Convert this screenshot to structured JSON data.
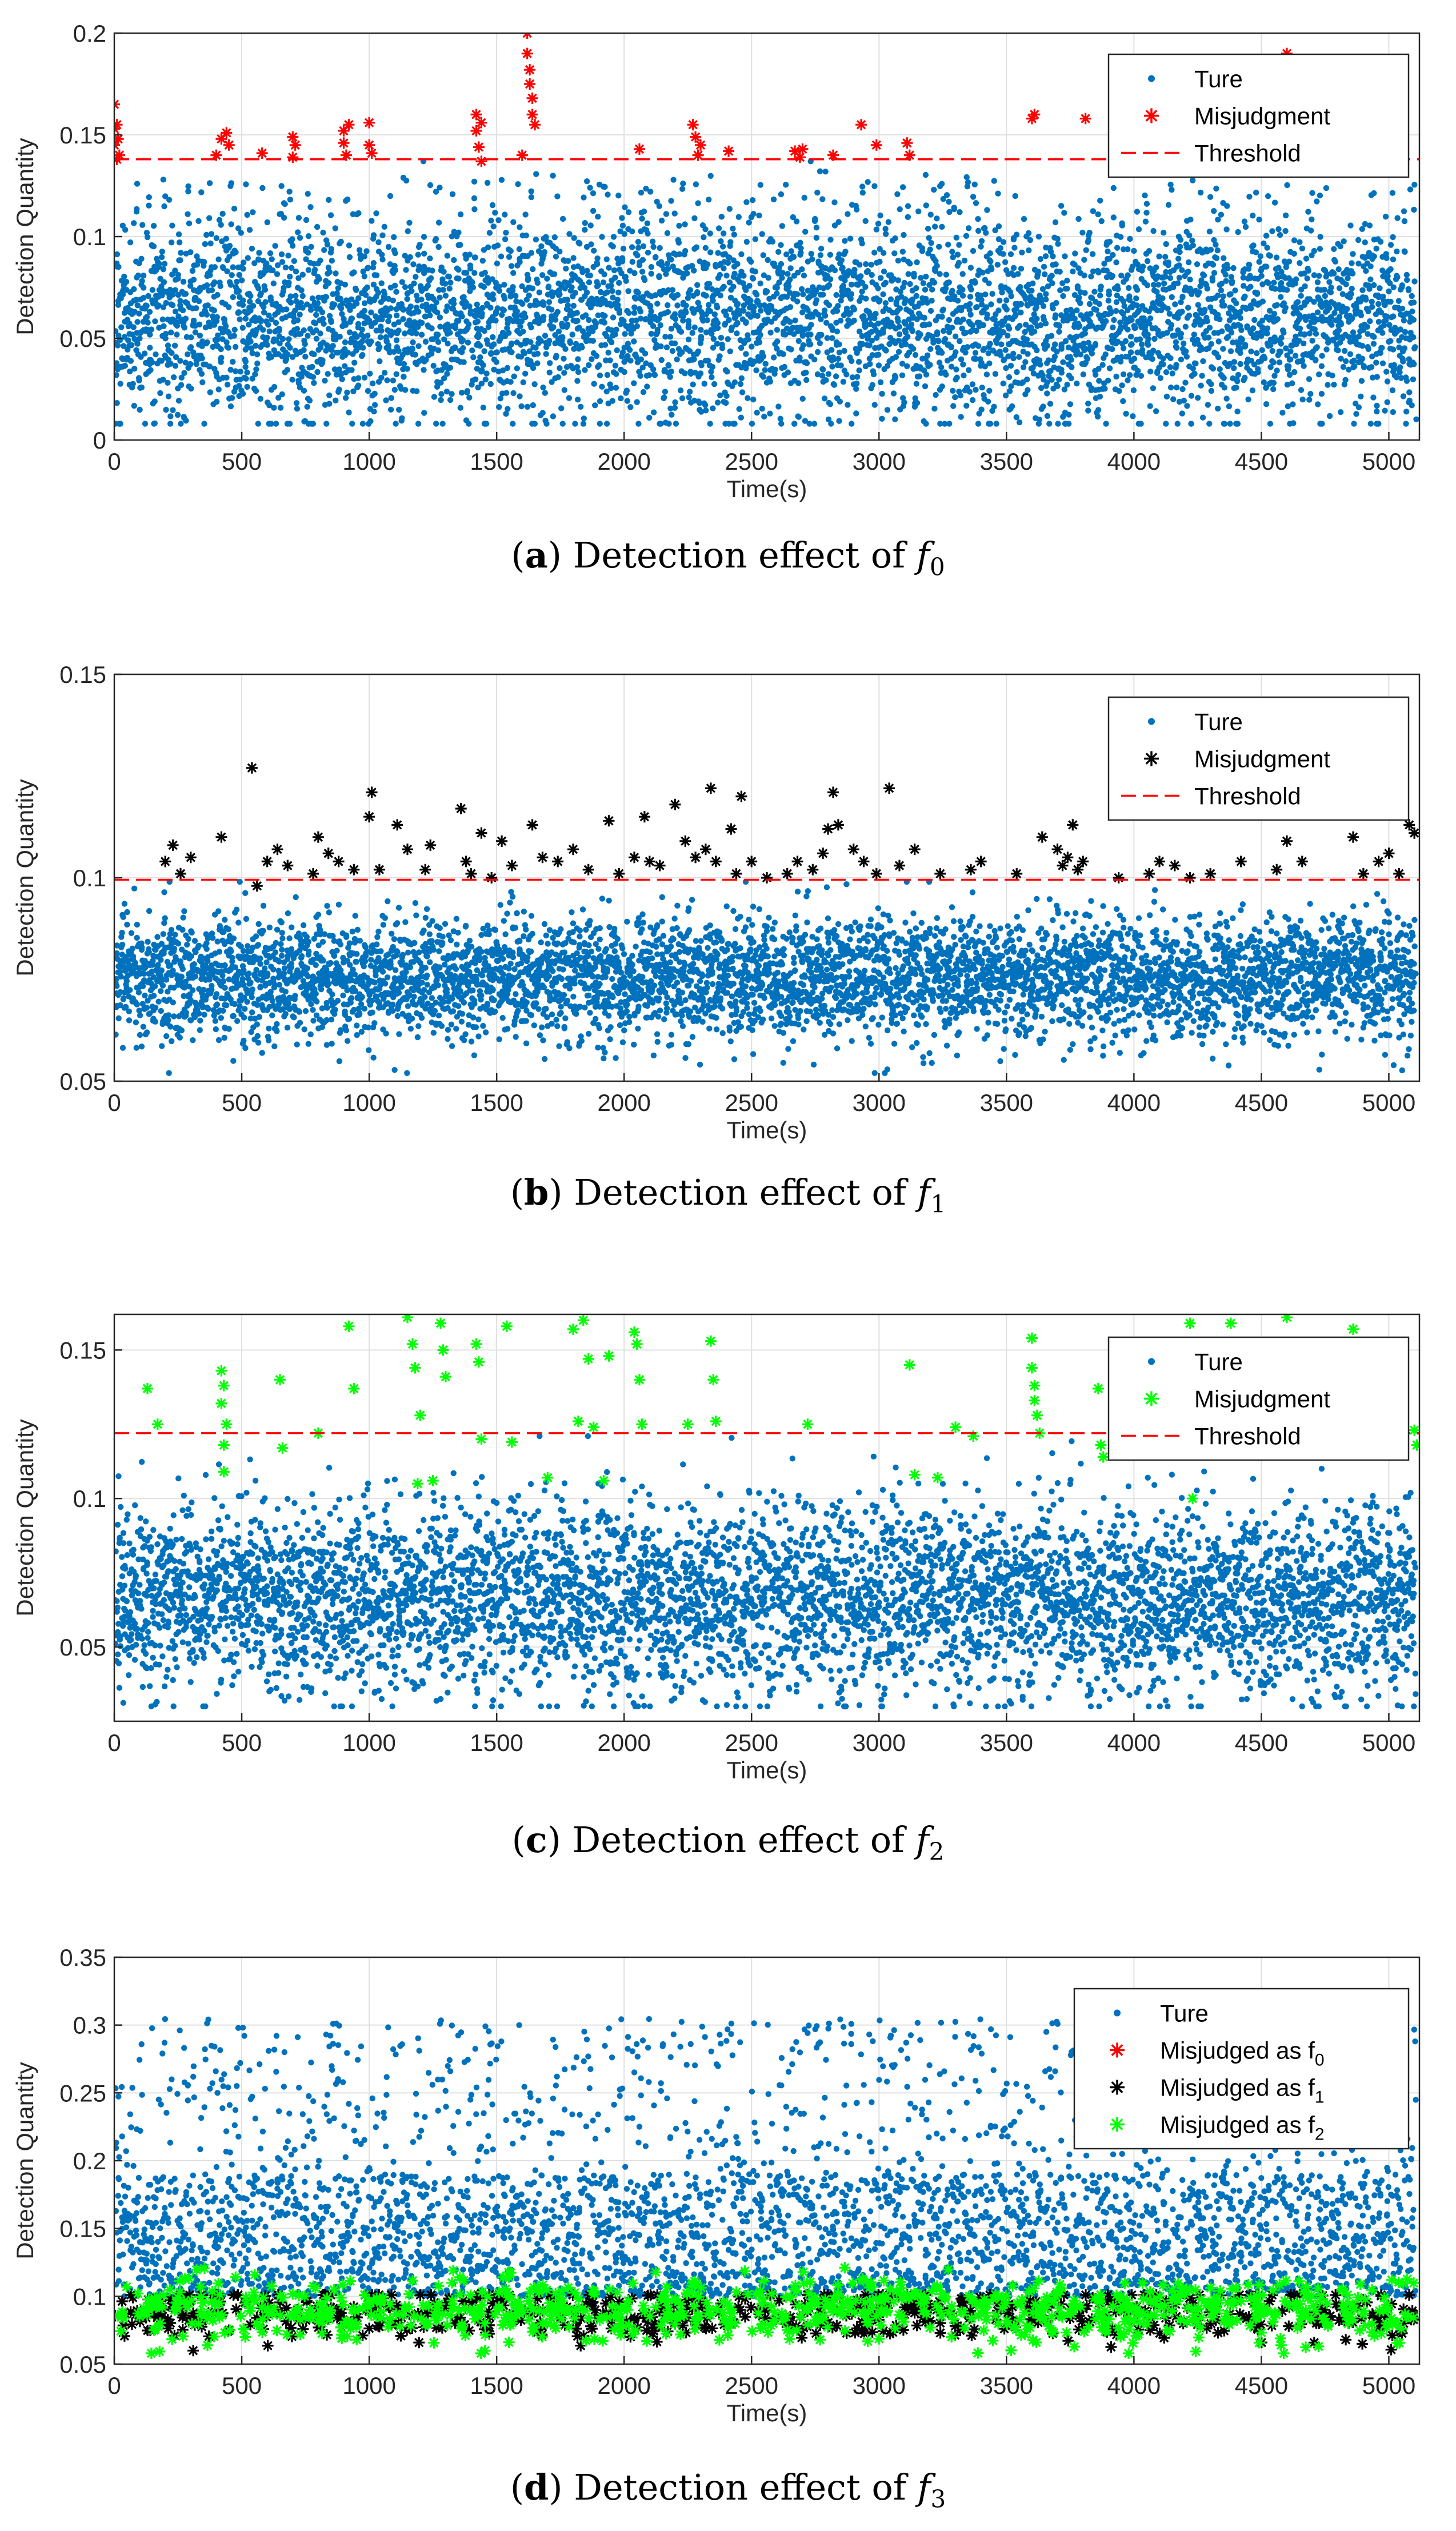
{
  "figure": {
    "captions": [
      {
        "label": "a",
        "text": "Detection effect of",
        "var": "f",
        "sub": "0"
      },
      {
        "label": "b",
        "text": "Detection effect of",
        "var": "f",
        "sub": "1"
      },
      {
        "label": "c",
        "text": "Detection effect of",
        "var": "f",
        "sub": "2"
      },
      {
        "label": "d",
        "text": "Detection effect of",
        "var": "f",
        "sub": "3"
      }
    ]
  },
  "colors": {
    "ture": "#0072BD",
    "misjudge_red": "#FF0000",
    "misjudge_black": "#000000",
    "misjudge_green": "#00FF00",
    "threshold": "#FF0000",
    "grid": "#e0e0e0"
  },
  "chart_data": [
    {
      "id": "a",
      "type": "scatter",
      "title": "",
      "xlabel": "Time(s)",
      "ylabel": "Detection Quantity",
      "xlim": [
        0,
        5120
      ],
      "ylim": [
        0,
        0.2
      ],
      "xticks": [
        0,
        500,
        1000,
        1500,
        2000,
        2500,
        3000,
        3500,
        4000,
        4500,
        5000
      ],
      "xtick_labels": [
        "0",
        "500",
        "1000",
        "1500",
        "2000",
        "2500",
        "3000",
        "3500",
        "4000",
        "4500",
        "5000"
      ],
      "yticks": [
        0,
        0.05,
        0.1,
        0.15,
        0.2
      ],
      "ytick_labels": [
        "0",
        "0.05",
        "0.1",
        "0.15",
        "0.2"
      ],
      "grid": true,
      "legend_position": "top-right",
      "threshold": 0.138,
      "series": [
        {
          "name": "Ture",
          "marker": "dot",
          "color": "#0072BD",
          "n": 5120,
          "mean": 0.058,
          "sd": 0.024,
          "min": 0.008,
          "max": 0.137
        },
        {
          "name": "Misjudgment",
          "marker": "star",
          "color": "#FF0000",
          "x": [
            0,
            0,
            0,
            10,
            10,
            15,
            20,
            400,
            420,
            440,
            450,
            580,
            700,
            700,
            710,
            900,
            900,
            910,
            920,
            1000,
            1000,
            1010,
            1420,
            1420,
            1430,
            1440,
            1440,
            1600,
            1620,
            1620,
            1630,
            1630,
            1640,
            1640,
            1650,
            2060,
            2270,
            2280,
            2290,
            2300,
            2410,
            2670,
            2690,
            2700,
            2820,
            2930,
            2990,
            3110,
            3120,
            3600,
            3610,
            3810,
            4600
          ],
          "y": [
            0.165,
            0.153,
            0.145,
            0.155,
            0.138,
            0.148,
            0.14,
            0.14,
            0.148,
            0.151,
            0.145,
            0.141,
            0.149,
            0.139,
            0.145,
            0.152,
            0.146,
            0.14,
            0.155,
            0.156,
            0.145,
            0.141,
            0.152,
            0.16,
            0.144,
            0.137,
            0.156,
            0.14,
            0.2,
            0.19,
            0.182,
            0.175,
            0.168,
            0.16,
            0.155,
            0.143,
            0.155,
            0.149,
            0.14,
            0.145,
            0.142,
            0.142,
            0.139,
            0.143,
            0.14,
            0.155,
            0.145,
            0.146,
            0.14,
            0.158,
            0.16,
            0.158,
            0.19
          ]
        },
        {
          "name": "Threshold",
          "line": "dashed",
          "color": "#FF0000",
          "value": 0.138
        }
      ]
    },
    {
      "id": "b",
      "type": "scatter",
      "title": "",
      "xlabel": "Time(s)",
      "ylabel": "Detection Quantity",
      "xlim": [
        0,
        5120
      ],
      "ylim": [
        0.05,
        0.15
      ],
      "xticks": [
        0,
        500,
        1000,
        1500,
        2000,
        2500,
        3000,
        3500,
        4000,
        4500,
        5000
      ],
      "xtick_labels": [
        "0",
        "500",
        "1000",
        "1500",
        "2000",
        "2500",
        "3000",
        "3500",
        "4000",
        "4500",
        "5000"
      ],
      "yticks": [
        0.05,
        0.1,
        0.15
      ],
      "ytick_labels": [
        "0.05",
        "0.1",
        "0.15"
      ],
      "grid": true,
      "legend_position": "top-right",
      "threshold": 0.0995,
      "series": [
        {
          "name": "Ture",
          "marker": "dot",
          "color": "#0072BD",
          "n": 5120,
          "mean": 0.0755,
          "sd": 0.0075,
          "min": 0.052,
          "max": 0.099
        },
        {
          "name": "Misjudgment",
          "marker": "star",
          "color": "#000000",
          "x": [
            200,
            230,
            260,
            300,
            420,
            540,
            560,
            600,
            640,
            680,
            780,
            800,
            840,
            880,
            940,
            1000,
            1010,
            1040,
            1110,
            1150,
            1220,
            1240,
            1360,
            1380,
            1400,
            1440,
            1480,
            1520,
            1560,
            1640,
            1680,
            1740,
            1800,
            1860,
            1940,
            1980,
            2040,
            2080,
            2100,
            2140,
            2200,
            2240,
            2280,
            2320,
            2340,
            2360,
            2420,
            2440,
            2460,
            2500,
            2560,
            2640,
            2680,
            2740,
            2780,
            2800,
            2820,
            2840,
            2900,
            2940,
            2990,
            3040,
            3080,
            3140,
            3240,
            3360,
            3400,
            3540,
            3640,
            3700,
            3720,
            3740,
            3760,
            3780,
            3800,
            3940,
            4060,
            4100,
            4160,
            4220,
            4300,
            4420,
            4560,
            4600,
            4660,
            4860,
            4900,
            4960,
            5000,
            5040,
            5080,
            5100
          ],
          "y": [
            0.104,
            0.108,
            0.101,
            0.105,
            0.11,
            0.127,
            0.098,
            0.104,
            0.107,
            0.103,
            0.101,
            0.11,
            0.106,
            0.104,
            0.102,
            0.115,
            0.121,
            0.102,
            0.113,
            0.107,
            0.102,
            0.108,
            0.117,
            0.104,
            0.101,
            0.111,
            0.1,
            0.109,
            0.103,
            0.113,
            0.105,
            0.104,
            0.107,
            0.102,
            0.114,
            0.101,
            0.105,
            0.115,
            0.104,
            0.103,
            0.118,
            0.109,
            0.105,
            0.107,
            0.122,
            0.104,
            0.112,
            0.101,
            0.12,
            0.104,
            0.1,
            0.101,
            0.104,
            0.102,
            0.106,
            0.112,
            0.121,
            0.113,
            0.107,
            0.104,
            0.101,
            0.122,
            0.103,
            0.107,
            0.101,
            0.102,
            0.104,
            0.101,
            0.11,
            0.107,
            0.103,
            0.105,
            0.113,
            0.102,
            0.104,
            0.1,
            0.101,
            0.104,
            0.103,
            0.1,
            0.101,
            0.104,
            0.102,
            0.109,
            0.104,
            0.11,
            0.101,
            0.104,
            0.106,
            0.101,
            0.113,
            0.111
          ]
        },
        {
          "name": "Threshold",
          "line": "dashed",
          "color": "#FF0000",
          "value": 0.0995
        }
      ]
    },
    {
      "id": "c",
      "type": "scatter",
      "title": "",
      "xlabel": "Time(s)",
      "ylabel": "Detection Quantity",
      "xlim": [
        0,
        5120
      ],
      "ylim": [
        0.025,
        0.162
      ],
      "xticks": [
        0,
        500,
        1000,
        1500,
        2000,
        2500,
        3000,
        3500,
        4000,
        4500,
        5000
      ],
      "xtick_labels": [
        "0",
        "500",
        "1000",
        "1500",
        "2000",
        "2500",
        "3000",
        "3500",
        "4000",
        "4500",
        "5000"
      ],
      "yticks": [
        0.05,
        0.1,
        0.15
      ],
      "ytick_labels": [
        "0.05",
        "0.1",
        "0.15"
      ],
      "grid": true,
      "legend_position": "top-right",
      "threshold": 0.122,
      "series": [
        {
          "name": "Ture",
          "marker": "dot",
          "color": "#0072BD",
          "n": 5120,
          "mean": 0.066,
          "sd": 0.016,
          "min": 0.03,
          "max": 0.121
        },
        {
          "name": "Misjudgment",
          "marker": "star",
          "color": "#00FF00",
          "x": [
            130,
            170,
            420,
            420,
            430,
            430,
            430,
            440,
            650,
            660,
            800,
            920,
            940,
            1150,
            1170,
            1180,
            1190,
            1200,
            1250,
            1280,
            1290,
            1300,
            1420,
            1430,
            1440,
            1540,
            1560,
            1700,
            1800,
            1820,
            1840,
            1860,
            1880,
            1920,
            1940,
            2040,
            2050,
            2060,
            2070,
            2250,
            2340,
            2350,
            2360,
            2720,
            3120,
            3140,
            3230,
            3300,
            3370,
            3600,
            3600,
            3610,
            3610,
            3620,
            3630,
            3860,
            3870,
            3880,
            4220,
            4230,
            4380,
            4600,
            4620,
            4860,
            5100,
            5110
          ],
          "y": [
            0.137,
            0.125,
            0.143,
            0.132,
            0.118,
            0.109,
            0.138,
            0.125,
            0.14,
            0.117,
            0.122,
            0.158,
            0.137,
            0.161,
            0.152,
            0.144,
            0.105,
            0.128,
            0.106,
            0.159,
            0.15,
            0.141,
            0.152,
            0.146,
            0.12,
            0.158,
            0.119,
            0.107,
            0.157,
            0.126,
            0.16,
            0.147,
            0.124,
            0.106,
            0.148,
            0.156,
            0.152,
            0.14,
            0.125,
            0.125,
            0.153,
            0.14,
            0.126,
            0.125,
            0.145,
            0.108,
            0.107,
            0.124,
            0.121,
            0.154,
            0.144,
            0.138,
            0.133,
            0.128,
            0.122,
            0.137,
            0.118,
            0.114,
            0.159,
            0.1,
            0.159,
            0.161,
            0.12,
            0.157,
            0.123,
            0.118
          ]
        },
        {
          "name": "Threshold",
          "line": "dashed",
          "color": "#FF0000",
          "value": 0.122
        }
      ]
    },
    {
      "id": "d",
      "type": "scatter",
      "title": "",
      "xlabel": "Time(s)",
      "ylabel": "Detection Quantity",
      "xlim": [
        0,
        5120
      ],
      "ylim": [
        0.05,
        0.35
      ],
      "xticks": [
        0,
        500,
        1000,
        1500,
        2000,
        2500,
        3000,
        3500,
        4000,
        4500,
        5000
      ],
      "xtick_labels": [
        "0",
        "500",
        "1000",
        "1500",
        "2000",
        "2500",
        "3000",
        "3500",
        "4000",
        "4500",
        "5000"
      ],
      "yticks": [
        0.05,
        0.1,
        0.15,
        0.2,
        0.25,
        0.3,
        0.35
      ],
      "ytick_labels": [
        "0.05",
        "0.1",
        "0.15",
        "0.2",
        "0.25",
        "0.3",
        "0.35"
      ],
      "grid": true,
      "legend_position": "top-right",
      "series": [
        {
          "name": "Ture",
          "marker": "dot",
          "color": "#0072BD",
          "n": 3600,
          "mean": 0.165,
          "sd": 0.045,
          "min": 0.1,
          "max": 0.305
        },
        {
          "name": "Misjudged as f",
          "sub": "0",
          "marker": "star",
          "color": "#FF0000",
          "n": 0
        },
        {
          "name": "Misjudged as f",
          "sub": "1",
          "marker": "star",
          "color": "#000000",
          "n": 650,
          "mean": 0.088,
          "sd": 0.01,
          "min": 0.06,
          "max": 0.101
        },
        {
          "name": "Misjudged as f",
          "sub": "2",
          "marker": "star",
          "color": "#00FF00",
          "n": 850,
          "mean": 0.09,
          "sd": 0.012,
          "min": 0.058,
          "max": 0.122
        }
      ]
    }
  ]
}
